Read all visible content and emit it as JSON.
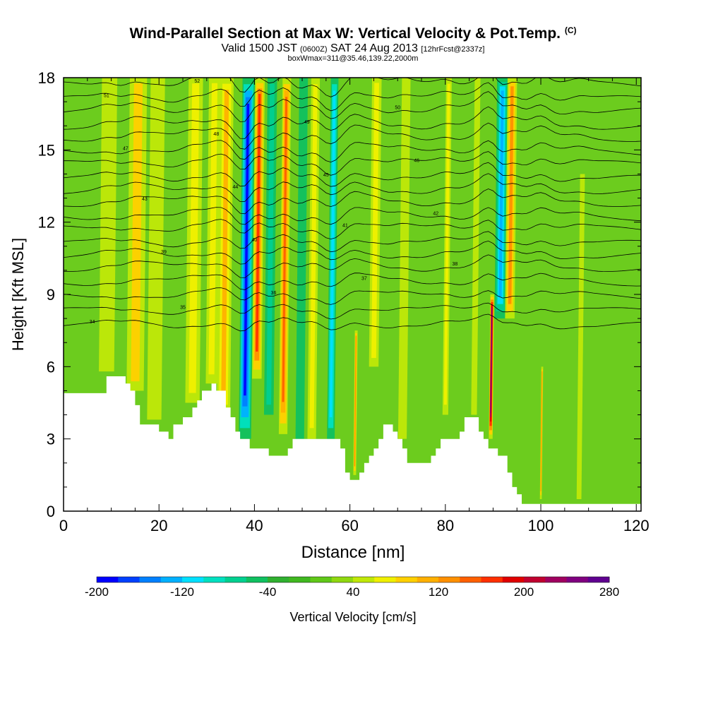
{
  "chart_data": {
    "type": "heatmap",
    "title": "Wind-Parallel Section at Max W: Vertical Velocity & Pot.Temp.",
    "title_mark": "(C)",
    "subtitle": {
      "valid": "Valid 1500 JST",
      "utc": "(0600Z)",
      "date": "SAT 24 Aug 2013",
      "fcst": "[12hrFcst@2337z]"
    },
    "subtitle2": "boxWmax=311@35.46,139.22,2000m",
    "xlabel": "Distance [nm]",
    "ylabel": "Height [Kft MSL]",
    "xlim": [
      0,
      121
    ],
    "ylim": [
      0,
      18
    ],
    "x_ticks": [
      "0",
      "20",
      "40",
      "60",
      "80",
      "100",
      "120"
    ],
    "x_tick_values": [
      0,
      20,
      40,
      60,
      80,
      100,
      120
    ],
    "y_ticks": [
      "0",
      "3",
      "6",
      "9",
      "12",
      "15",
      "18"
    ],
    "y_tick_values": [
      0,
      3,
      6,
      9,
      12,
      15,
      18
    ],
    "grid": false,
    "colorbar": {
      "label": "Vertical Velocity [cm/s]",
      "min": -200,
      "max": 280,
      "step": 20,
      "tick_labels": [
        "-200",
        "-120",
        "-40",
        "40",
        "120",
        "200",
        "280"
      ],
      "colors": [
        "#0000ff",
        "#0040ff",
        "#0080ff",
        "#00b0ff",
        "#00e0ff",
        "#00e0c0",
        "#00d090",
        "#10c060",
        "#30b030",
        "#40b820",
        "#60c818",
        "#90d810",
        "#c0e808",
        "#f0f000",
        "#ffd000",
        "#ffb000",
        "#ff9000",
        "#ff6000",
        "#ff3000",
        "#e00000",
        "#c00030",
        "#a00060",
        "#800080",
        "#600090"
      ]
    },
    "terrain_kft": [
      [
        0,
        4.9
      ],
      [
        9,
        4.9
      ],
      [
        9,
        5.6
      ],
      [
        13,
        5.6
      ],
      [
        13,
        5.3
      ],
      [
        14,
        5.3
      ],
      [
        14,
        5.0
      ],
      [
        15,
        5.0
      ],
      [
        15,
        4.4
      ],
      [
        16,
        4.4
      ],
      [
        16,
        3.6
      ],
      [
        20,
        3.6
      ],
      [
        20,
        3.3
      ],
      [
        22,
        3.3
      ],
      [
        22,
        3.0
      ],
      [
        23,
        3.0
      ],
      [
        23,
        3.6
      ],
      [
        25,
        3.6
      ],
      [
        25,
        3.9
      ],
      [
        27,
        3.9
      ],
      [
        27,
        4.3
      ],
      [
        28,
        4.3
      ],
      [
        28,
        4.6
      ],
      [
        29,
        4.6
      ],
      [
        29,
        5.0
      ],
      [
        31,
        5.0
      ],
      [
        31,
        5.3
      ],
      [
        32,
        5.3
      ],
      [
        32,
        5.0
      ],
      [
        34,
        5.0
      ],
      [
        34,
        4.3
      ],
      [
        35,
        4.3
      ],
      [
        35,
        3.9
      ],
      [
        36,
        3.9
      ],
      [
        36,
        3.3
      ],
      [
        37,
        3.3
      ],
      [
        37,
        3.0
      ],
      [
        39,
        3.0
      ],
      [
        39,
        2.6
      ],
      [
        40,
        2.6
      ],
      [
        40,
        2.6
      ],
      [
        43,
        2.6
      ],
      [
        43,
        2.3
      ],
      [
        47,
        2.3
      ],
      [
        47,
        2.6
      ],
      [
        48,
        2.6
      ],
      [
        48,
        3.0
      ],
      [
        58,
        3.0
      ],
      [
        58,
        2.6
      ],
      [
        59,
        2.6
      ],
      [
        59,
        1.6
      ],
      [
        60,
        1.6
      ],
      [
        60,
        1.3
      ],
      [
        62,
        1.3
      ],
      [
        62,
        1.6
      ],
      [
        63,
        1.6
      ],
      [
        63,
        2.0
      ],
      [
        64,
        2.0
      ],
      [
        64,
        2.3
      ],
      [
        65,
        2.3
      ],
      [
        65,
        2.6
      ],
      [
        66,
        2.6
      ],
      [
        66,
        3.0
      ],
      [
        67,
        3.0
      ],
      [
        67,
        3.6
      ],
      [
        69,
        3.6
      ],
      [
        69,
        3.3
      ],
      [
        70,
        3.3
      ],
      [
        70,
        3.0
      ],
      [
        71,
        3.0
      ],
      [
        71,
        2.6
      ],
      [
        72,
        2.6
      ],
      [
        72,
        2.0
      ],
      [
        73,
        2.0
      ],
      [
        73,
        2.0
      ],
      [
        77,
        2.0
      ],
      [
        77,
        2.3
      ],
      [
        78,
        2.3
      ],
      [
        78,
        2.6
      ],
      [
        79,
        2.6
      ],
      [
        79,
        3.0
      ],
      [
        83,
        3.0
      ],
      [
        83,
        3.3
      ],
      [
        84,
        3.3
      ],
      [
        84,
        3.9
      ],
      [
        87,
        3.9
      ],
      [
        87,
        3.3
      ],
      [
        88,
        3.3
      ],
      [
        88,
        3.0
      ],
      [
        89,
        3.0
      ],
      [
        89,
        2.6
      ],
      [
        91,
        2.6
      ],
      [
        91,
        2.3
      ],
      [
        93,
        2.3
      ],
      [
        93,
        1.6
      ],
      [
        94,
        1.6
      ],
      [
        94,
        1.0
      ],
      [
        95,
        1.0
      ],
      [
        95,
        0.7
      ],
      [
        96,
        0.7
      ],
      [
        96,
        0.3
      ],
      [
        121,
        0.3
      ]
    ],
    "updrafts": [
      {
        "x": 9,
        "bottom": 5.8,
        "top": 18,
        "w": 50,
        "tilt": 1.6
      },
      {
        "x": 15,
        "bottom": 5.0,
        "top": 18,
        "w": 80,
        "tilt": 1.8
      },
      {
        "x": 19,
        "bottom": 3.8,
        "top": 18,
        "w": 40,
        "tilt": 1.5
      },
      {
        "x": 27,
        "bottom": 4.5,
        "top": 18,
        "w": 70,
        "tilt": 1.5
      },
      {
        "x": 31,
        "bottom": 5.3,
        "top": 18,
        "w": 60,
        "tilt": 1.2
      },
      {
        "x": 33.5,
        "bottom": 4.0,
        "top": 18,
        "w": 100,
        "tilt": 1.4
      },
      {
        "x": 38,
        "bottom": 3.0,
        "top": 18,
        "w": -190,
        "tilt": 1.3
      },
      {
        "x": 40.5,
        "bottom": 5.5,
        "top": 18,
        "w": 160,
        "tilt": 1.0
      },
      {
        "x": 43,
        "bottom": 4.0,
        "top": 18,
        "w": -70,
        "tilt": 1.0
      },
      {
        "x": 46,
        "bottom": 3.2,
        "top": 18,
        "w": 140,
        "tilt": 0.9
      },
      {
        "x": 49.5,
        "bottom": 3.0,
        "top": 18,
        "w": -50,
        "tilt": 0.9
      },
      {
        "x": 52,
        "bottom": 3.0,
        "top": 18,
        "w": 70,
        "tilt": 0.9
      },
      {
        "x": 56,
        "bottom": 3.0,
        "top": 18,
        "w": -120,
        "tilt": 0.8
      },
      {
        "x": 61,
        "bottom": 1.5,
        "top": 7.5,
        "w": 130,
        "tilt": 0.3
      },
      {
        "x": 65,
        "bottom": 6,
        "top": 18,
        "w": 70,
        "tilt": 1.0
      },
      {
        "x": 71,
        "bottom": 3.0,
        "top": 18,
        "w": 50,
        "tilt": 0.9
      },
      {
        "x": 80,
        "bottom": 4.0,
        "top": 18,
        "w": 60,
        "tilt": 0.6
      },
      {
        "x": 86,
        "bottom": 4.0,
        "top": 18,
        "w": 50,
        "tilt": 0.6
      },
      {
        "x": 89.5,
        "bottom": 3.0,
        "top": 9,
        "w": 270,
        "tilt": 0.4
      },
      {
        "x": 91.5,
        "bottom": 8,
        "top": 18,
        "w": -140,
        "tilt": 1.2
      },
      {
        "x": 93.5,
        "bottom": 8,
        "top": 18,
        "w": 120,
        "tilt": 1.0
      },
      {
        "x": 100,
        "bottom": 0.5,
        "top": 6,
        "w": 120,
        "tilt": 0.2
      },
      {
        "x": 108,
        "bottom": 0.5,
        "top": 14,
        "w": 40,
        "tilt": 0.5
      }
    ],
    "theta_contours": [
      {
        "label": "34",
        "base": 7.7
      },
      {
        "label": "35",
        "base": 8.3
      },
      {
        "label": "36",
        "base": 8.9
      },
      {
        "label": "37",
        "base": 9.5
      },
      {
        "label": "38",
        "base": 10.1
      },
      {
        "label": "39",
        "base": 10.6
      },
      {
        "label": "40",
        "base": 11.1
      },
      {
        "label": "41",
        "base": 11.7
      },
      {
        "label": "42",
        "base": 12.2
      },
      {
        "label": "43",
        "base": 12.8
      },
      {
        "label": "44",
        "base": 13.3
      },
      {
        "label": "45",
        "base": 13.8
      },
      {
        "label": "46",
        "base": 14.4
      },
      {
        "label": "47",
        "base": 14.9
      },
      {
        "label": "48",
        "base": 15.5
      },
      {
        "label": "49",
        "base": 16.0
      },
      {
        "label": "50",
        "base": 16.6
      },
      {
        "label": "51",
        "base": 17.1
      },
      {
        "label": "52",
        "base": 17.7
      }
    ]
  }
}
